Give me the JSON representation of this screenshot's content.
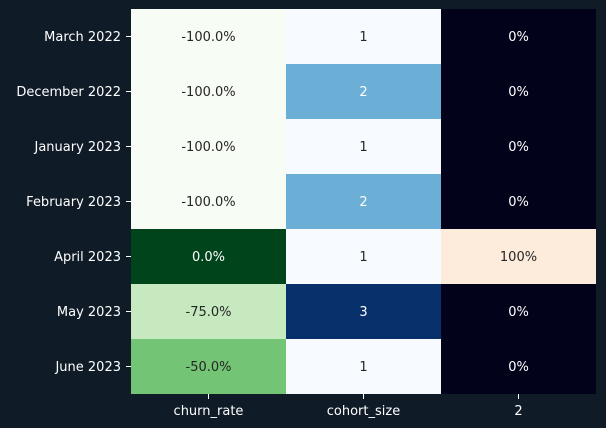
{
  "chart_data": {
    "type": "heatmap",
    "rows": [
      "March 2022",
      "December 2022",
      "January 2023",
      "February 2023",
      "April 2023",
      "May 2023",
      "June 2023"
    ],
    "columns": [
      "churn_rate",
      "cohort_size",
      "2"
    ],
    "values": [
      [
        -100.0,
        1,
        0
      ],
      [
        -100.0,
        2,
        0
      ],
      [
        -100.0,
        1,
        0
      ],
      [
        -100.0,
        2,
        0
      ],
      [
        0.0,
        1,
        100
      ],
      [
        -75.0,
        3,
        0
      ],
      [
        -50.0,
        1,
        0
      ]
    ],
    "labels": [
      [
        "-100.0%",
        "1",
        "0%"
      ],
      [
        "-100.0%",
        "2",
        "0%"
      ],
      [
        "-100.0%",
        "1",
        "0%"
      ],
      [
        "-100.0%",
        "2",
        "0%"
      ],
      [
        "0.0%",
        "1",
        "100%"
      ],
      [
        "-75.0%",
        "3",
        "0%"
      ],
      [
        "-50.0%",
        "1",
        "0%"
      ]
    ],
    "column_colormaps": [
      "Greens",
      "Blues",
      "Oranges-dark"
    ],
    "cell_colors": [
      [
        "#f7fcf5",
        "#f7fbff",
        "#02021a"
      ],
      [
        "#f7fcf5",
        "#6baed6",
        "#02021a"
      ],
      [
        "#f7fcf5",
        "#f7fbff",
        "#02021a"
      ],
      [
        "#f7fcf5",
        "#6baed6",
        "#02021a"
      ],
      [
        "#00441b",
        "#f7fbff",
        "#fdebdc"
      ],
      [
        "#c7e9c0",
        "#08306b",
        "#02021a"
      ],
      [
        "#74c476",
        "#f7fbff",
        "#02021a"
      ]
    ],
    "text_colors": [
      [
        "#262626",
        "#262626",
        "#ffffff"
      ],
      [
        "#262626",
        "#ffffff",
        "#ffffff"
      ],
      [
        "#262626",
        "#262626",
        "#ffffff"
      ],
      [
        "#262626",
        "#ffffff",
        "#ffffff"
      ],
      [
        "#ffffff",
        "#262626",
        "#262626"
      ],
      [
        "#262626",
        "#ffffff",
        "#ffffff"
      ],
      [
        "#262626",
        "#262626",
        "#ffffff"
      ]
    ],
    "background": "#0f1b26",
    "grid": false
  }
}
